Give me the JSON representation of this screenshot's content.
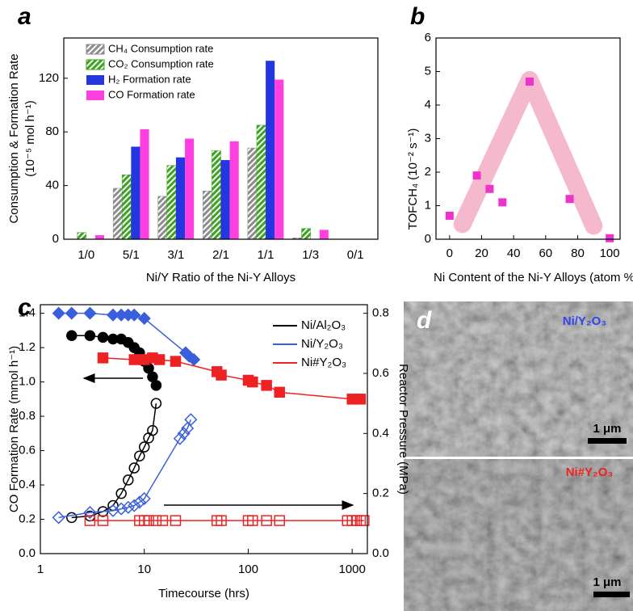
{
  "chart_data": [
    {
      "panel": "a",
      "type": "bar",
      "ylabel": [
        "Consumption & Formation Rate",
        "(10⁻⁵ mol h⁻¹)"
      ],
      "xlabel": "Ni/Y Ratio of the Ni-Y Alloys",
      "categories": [
        "1/0",
        "5/1",
        "3/1",
        "2/1",
        "1/1",
        "1/3",
        "0/1"
      ],
      "series": [
        {
          "name": "CH₄ Consumption rate",
          "color": "#8c8c8c",
          "hatch": true,
          "values": [
            0,
            38,
            32,
            36,
            68,
            1,
            0
          ]
        },
        {
          "name": "CO₂ Consumption rate",
          "color": "#3aa51c",
          "hatch": true,
          "values": [
            5,
            48,
            55,
            66,
            85,
            8,
            0
          ]
        },
        {
          "name": "H₂ Formation rate",
          "color": "#2436e0",
          "hatch": false,
          "values": [
            0,
            69,
            61,
            59,
            133,
            0,
            0
          ]
        },
        {
          "name": "CO Formation rate",
          "color": "#ff3fe0",
          "hatch": false,
          "values": [
            3,
            82,
            75,
            73,
            119,
            7,
            0
          ]
        }
      ],
      "ylim": [
        0,
        150
      ],
      "yticks": [
        0,
        40,
        80,
        120
      ],
      "legend": "upper left"
    },
    {
      "panel": "b",
      "type": "scatter",
      "ylabel": "TOFCH₄ (10⁻² s⁻¹)",
      "xlabel": "Ni Content of the Ni-Y Alloys (atom %)",
      "x": [
        0,
        17,
        25,
        33,
        50,
        75,
        100
      ],
      "values": [
        0.7,
        1.9,
        1.5,
        1.1,
        4.7,
        1.2,
        0.03
      ],
      "color": "#ee33cc",
      "trend": {
        "x": [
          8,
          50,
          90
        ],
        "values": [
          0.45,
          4.75,
          0.4
        ],
        "color": "#f2a2bd"
      },
      "xlim": [
        -8.5,
        106.5
      ],
      "xticks": [
        0,
        20,
        40,
        60,
        80,
        100
      ],
      "ylim": [
        0,
        6
      ],
      "yticks": [
        0,
        1,
        2,
        3,
        4,
        5,
        6
      ]
    },
    {
      "panel": "c",
      "type": "line",
      "log_x": true,
      "xlabel": "Timecourse (hrs)",
      "ylabel": "CO Formation Rate (mmol h⁻¹)",
      "y2label": "Reactor Pressure (MPa)",
      "xlim": [
        1,
        1400
      ],
      "xticks": [
        1,
        10,
        100,
        1000
      ],
      "ylim": [
        0,
        1.45
      ],
      "yticks": [
        {
          "value": 0,
          "label": "0.0"
        },
        0.2,
        0.4,
        0.6,
        0.8,
        {
          "value": 1,
          "label": "1.0"
        },
        1.2,
        1.4
      ],
      "y2lim": [
        0,
        0.8286
      ],
      "y2ticks": [
        {
          "value": 0,
          "label": "0.0"
        },
        0.2,
        0.4,
        0.6,
        0.8
      ],
      "legend": "upper right",
      "series": [
        {
          "name": "Ni/Al₂O₃",
          "color": "#000000",
          "marker": "circle",
          "filled": true,
          "x": [
            2,
            3,
            4,
            5,
            6,
            7,
            8,
            9,
            10,
            11,
            12,
            13
          ],
          "values": [
            1.27,
            1.27,
            1.26,
            1.25,
            1.25,
            1.23,
            1.2,
            1.17,
            1.12,
            1.08,
            1.03,
            0.98
          ]
        },
        {
          "name": "Ni/Y₂O₃",
          "color": "#3a5fdc",
          "marker": "diamond",
          "filled": true,
          "x": [
            1.5,
            2,
            3,
            5,
            6,
            7,
            8,
            10,
            25,
            27,
            30
          ],
          "values": [
            1.4,
            1.4,
            1.4,
            1.39,
            1.39,
            1.39,
            1.39,
            1.37,
            1.17,
            1.15,
            1.13
          ]
        },
        {
          "name": "Ni#Y₂O₃",
          "color": "#ee2222",
          "marker": "square",
          "filled": true,
          "x": [
            4,
            8,
            10,
            12,
            14,
            20,
            50,
            55,
            100,
            110,
            150,
            200,
            1000,
            1200
          ],
          "values": [
            1.14,
            1.13,
            1.13,
            1.14,
            1.13,
            1.12,
            1.06,
            1.04,
            1.01,
            1.0,
            0.98,
            0.94,
            0.9,
            0.9
          ]
        },
        {
          "color": "#000000",
          "marker": "circle",
          "filled": false,
          "axis": "y2",
          "x": [
            2,
            3,
            4,
            5,
            6,
            7,
            8,
            9,
            10,
            11,
            12,
            13
          ],
          "values": [
            0.12,
            0.125,
            0.14,
            0.16,
            0.2,
            0.245,
            0.285,
            0.325,
            0.355,
            0.385,
            0.41,
            0.5
          ]
        },
        {
          "color": "#3a5fdc",
          "marker": "diamond",
          "filled": false,
          "axis": "y2",
          "x": [
            1.5,
            3,
            5,
            6,
            7,
            8,
            9,
            10,
            22,
            24,
            26,
            28
          ],
          "values": [
            0.12,
            0.137,
            0.143,
            0.149,
            0.154,
            0.16,
            0.171,
            0.183,
            0.383,
            0.4,
            0.417,
            0.446
          ]
        },
        {
          "color": "#ee2222",
          "marker": "square",
          "filled": false,
          "axis": "y2",
          "x": [
            3,
            4,
            9,
            10,
            11,
            13,
            15,
            20,
            50,
            55,
            100,
            110,
            150,
            200,
            900,
            1000,
            1100,
            1200,
            1300
          ],
          "values": [
            0.11,
            0.11,
            0.11,
            0.11,
            0.11,
            0.11,
            0.11,
            0.11,
            0.11,
            0.11,
            0.11,
            0.11,
            0.11,
            0.11,
            0.11,
            0.11,
            0.11,
            0.11,
            0.11
          ]
        }
      ]
    }
  ],
  "images": {
    "panel": "d",
    "items": [
      {
        "label": "Ni/Y₂O₃",
        "scale": "1 μm"
      },
      {
        "label": "Ni#Y₂O₃",
        "scale": "1 μm"
      }
    ]
  }
}
